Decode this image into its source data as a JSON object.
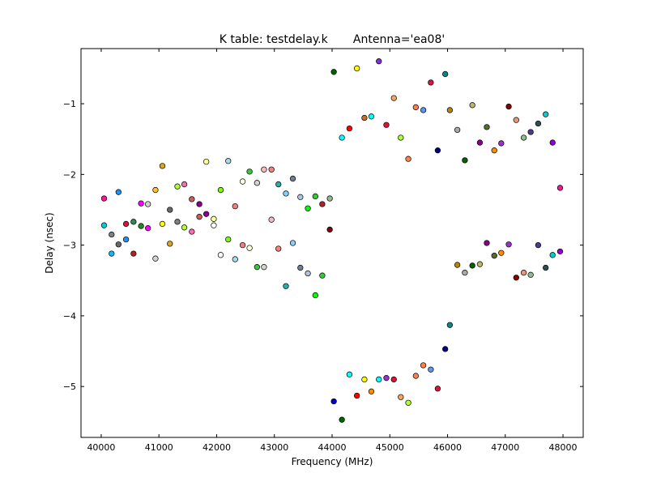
{
  "chart_data": {
    "type": "scatter",
    "title": "K table: testdelay.k       Antenna='ea08'",
    "xlabel": "Frequency (MHz)",
    "ylabel": "Delay (nsec)",
    "xlim": [
      39650,
      48350
    ],
    "ylim": [
      -5.72,
      -0.22
    ],
    "xticks": [
      40000,
      41000,
      42000,
      43000,
      44000,
      45000,
      46000,
      47000,
      48000
    ],
    "yticks": [
      -5,
      -4,
      -3,
      -2,
      -1
    ],
    "xtick_labels": [
      "40000",
      "41000",
      "42000",
      "43000",
      "44000",
      "45000",
      "46000",
      "47000",
      "48000"
    ],
    "ytick_labels": [
      "−5",
      "−4",
      "−3",
      "−2",
      "−1"
    ],
    "grid": false,
    "points": [
      {
        "x": 40050,
        "y": -2.34,
        "color": "#ff1493"
      },
      {
        "x": 40050,
        "y": -2.72,
        "color": "#00ced1"
      },
      {
        "x": 40180,
        "y": -2.85,
        "color": "#808080"
      },
      {
        "x": 40180,
        "y": -3.12,
        "color": "#00bfff"
      },
      {
        "x": 40300,
        "y": -2.25,
        "color": "#1e90ff"
      },
      {
        "x": 40300,
        "y": -2.99,
        "color": "#696969"
      },
      {
        "x": 40430,
        "y": -2.7,
        "color": "#dc143c"
      },
      {
        "x": 40430,
        "y": -2.92,
        "color": "#1e90ff"
      },
      {
        "x": 40560,
        "y": -2.67,
        "color": "#2e8b57"
      },
      {
        "x": 40560,
        "y": -3.12,
        "color": "#b22222"
      },
      {
        "x": 40690,
        "y": -2.41,
        "color": "#ff00ff"
      },
      {
        "x": 40690,
        "y": -2.73,
        "color": "#228b22"
      },
      {
        "x": 40810,
        "y": -2.42,
        "color": "#d3d3d3"
      },
      {
        "x": 40810,
        "y": -2.76,
        "color": "#ff00ff"
      },
      {
        "x": 40940,
        "y": -2.22,
        "color": "#ffc125"
      },
      {
        "x": 40940,
        "y": -3.19,
        "color": "#d3d3d3"
      },
      {
        "x": 41060,
        "y": -1.88,
        "color": "#daa520"
      },
      {
        "x": 41060,
        "y": -2.7,
        "color": "#ffff00"
      },
      {
        "x": 41190,
        "y": -2.5,
        "color": "#696969"
      },
      {
        "x": 41190,
        "y": -2.98,
        "color": "#daa520"
      },
      {
        "x": 41320,
        "y": -2.17,
        "color": "#adff2f"
      },
      {
        "x": 41320,
        "y": -2.67,
        "color": "#808080"
      },
      {
        "x": 41440,
        "y": -2.14,
        "color": "#ff69b4"
      },
      {
        "x": 41440,
        "y": -2.75,
        "color": "#adff2f"
      },
      {
        "x": 41570,
        "y": -2.35,
        "color": "#cd5c5c"
      },
      {
        "x": 41570,
        "y": -2.81,
        "color": "#ff69b4"
      },
      {
        "x": 41700,
        "y": -2.42,
        "color": "#8b008b"
      },
      {
        "x": 41700,
        "y": -2.6,
        "color": "#cd5c5c"
      },
      {
        "x": 41820,
        "y": -1.82,
        "color": "#ffff99"
      },
      {
        "x": 41820,
        "y": -2.56,
        "color": "#8b008b"
      },
      {
        "x": 41950,
        "y": -2.63,
        "color": "#ffff99"
      },
      {
        "x": 41950,
        "y": -2.72,
        "color": "#ffffff"
      },
      {
        "x": 42070,
        "y": -2.22,
        "color": "#7cfc00"
      },
      {
        "x": 42070,
        "y": -3.14,
        "color": "#ffffff"
      },
      {
        "x": 42200,
        "y": -1.81,
        "color": "#add8e6"
      },
      {
        "x": 42200,
        "y": -2.92,
        "color": "#7cfc00"
      },
      {
        "x": 42320,
        "y": -2.45,
        "color": "#f08080"
      },
      {
        "x": 42320,
        "y": -3.2,
        "color": "#add8e6"
      },
      {
        "x": 42450,
        "y": -2.1,
        "color": "#ffffe0"
      },
      {
        "x": 42450,
        "y": -3.0,
        "color": "#f08080"
      },
      {
        "x": 42570,
        "y": -1.96,
        "color": "#32cd32"
      },
      {
        "x": 42570,
        "y": -3.04,
        "color": "#ffffe0"
      },
      {
        "x": 42700,
        "y": -2.12,
        "color": "#d3d3d3"
      },
      {
        "x": 42700,
        "y": -3.31,
        "color": "#32cd32"
      },
      {
        "x": 42820,
        "y": -1.93,
        "color": "#ffb6c1"
      },
      {
        "x": 42820,
        "y": -3.31,
        "color": "#d3d3d3"
      },
      {
        "x": 42950,
        "y": -1.93,
        "color": "#fa8072"
      },
      {
        "x": 42950,
        "y": -2.64,
        "color": "#ffb6c1"
      },
      {
        "x": 43070,
        "y": -2.14,
        "color": "#20b2aa"
      },
      {
        "x": 43070,
        "y": -3.05,
        "color": "#fa8072"
      },
      {
        "x": 43200,
        "y": -2.27,
        "color": "#87cefa"
      },
      {
        "x": 43200,
        "y": -3.58,
        "color": "#20b2aa"
      },
      {
        "x": 43320,
        "y": -2.06,
        "color": "#708090"
      },
      {
        "x": 43320,
        "y": -2.97,
        "color": "#87cefa"
      },
      {
        "x": 43450,
        "y": -2.32,
        "color": "#b0c4de"
      },
      {
        "x": 43450,
        "y": -3.32,
        "color": "#708090"
      },
      {
        "x": 43580,
        "y": -2.48,
        "color": "#00ff00"
      },
      {
        "x": 43580,
        "y": -3.4,
        "color": "#b0c4de"
      },
      {
        "x": 43710,
        "y": -2.31,
        "color": "#32cd32"
      },
      {
        "x": 43710,
        "y": -3.71,
        "color": "#00ff00"
      },
      {
        "x": 43830,
        "y": -2.42,
        "color": "#b22222"
      },
      {
        "x": 43830,
        "y": -3.43,
        "color": "#32cd32"
      },
      {
        "x": 43960,
        "y": -2.34,
        "color": "#8fbc8f"
      },
      {
        "x": 43960,
        "y": -2.78,
        "color": "#8b0000"
      },
      {
        "x": 44030,
        "y": -0.55,
        "color": "#006400"
      },
      {
        "x": 44030,
        "y": -5.21,
        "color": "#0000cd"
      },
      {
        "x": 44170,
        "y": -1.48,
        "color": "#00ffff"
      },
      {
        "x": 44170,
        "y": -5.47,
        "color": "#006400"
      },
      {
        "x": 44300,
        "y": -1.35,
        "color": "#ff0000"
      },
      {
        "x": 44300,
        "y": -4.83,
        "color": "#00ffff"
      },
      {
        "x": 44430,
        "y": -0.5,
        "color": "#ffff00"
      },
      {
        "x": 44430,
        "y": -5.13,
        "color": "#ff0000"
      },
      {
        "x": 44560,
        "y": -1.2,
        "color": "#d2691e"
      },
      {
        "x": 44560,
        "y": -4.9,
        "color": "#ffff00"
      },
      {
        "x": 44680,
        "y": -1.18,
        "color": "#00ffff"
      },
      {
        "x": 44680,
        "y": -5.07,
        "color": "#ff8c00"
      },
      {
        "x": 44810,
        "y": -0.4,
        "color": "#8a2be2"
      },
      {
        "x": 44810,
        "y": -4.9,
        "color": "#00ffff"
      },
      {
        "x": 44940,
        "y": -1.3,
        "color": "#dc143c"
      },
      {
        "x": 44940,
        "y": -4.88,
        "color": "#9932cc"
      },
      {
        "x": 45070,
        "y": -0.92,
        "color": "#f4a460"
      },
      {
        "x": 45070,
        "y": -4.9,
        "color": "#dc143c"
      },
      {
        "x": 45190,
        "y": -1.48,
        "color": "#adff2f"
      },
      {
        "x": 45190,
        "y": -5.15,
        "color": "#f4a460"
      },
      {
        "x": 45320,
        "y": -1.78,
        "color": "#ff7f50"
      },
      {
        "x": 45320,
        "y": -5.23,
        "color": "#adff2f"
      },
      {
        "x": 45450,
        "y": -1.05,
        "color": "#ff7f50"
      },
      {
        "x": 45450,
        "y": -4.85,
        "color": "#ff7f50"
      },
      {
        "x": 45580,
        "y": -1.09,
        "color": "#6495ed"
      },
      {
        "x": 45580,
        "y": -4.7,
        "color": "#ff7f50"
      },
      {
        "x": 45710,
        "y": -0.7,
        "color": "#dc143c"
      },
      {
        "x": 45710,
        "y": -4.76,
        "color": "#6495ed"
      },
      {
        "x": 45830,
        "y": -1.66,
        "color": "#000080"
      },
      {
        "x": 45830,
        "y": -5.03,
        "color": "#dc143c"
      },
      {
        "x": 45960,
        "y": -0.58,
        "color": "#008b8b"
      },
      {
        "x": 45960,
        "y": -4.47,
        "color": "#000080"
      },
      {
        "x": 46040,
        "y": -1.09,
        "color": "#b8860b"
      },
      {
        "x": 46040,
        "y": -4.13,
        "color": "#008b8b"
      },
      {
        "x": 46170,
        "y": -1.37,
        "color": "#a9a9a9"
      },
      {
        "x": 46170,
        "y": -3.28,
        "color": "#b8860b"
      },
      {
        "x": 46300,
        "y": -1.8,
        "color": "#006400"
      },
      {
        "x": 46300,
        "y": -3.39,
        "color": "#a9a9a9"
      },
      {
        "x": 46430,
        "y": -1.02,
        "color": "#bdb76b"
      },
      {
        "x": 46430,
        "y": -3.29,
        "color": "#006400"
      },
      {
        "x": 46560,
        "y": -1.55,
        "color": "#8b008b"
      },
      {
        "x": 46560,
        "y": -3.27,
        "color": "#bdb76b"
      },
      {
        "x": 46680,
        "y": -1.33,
        "color": "#556b2f"
      },
      {
        "x": 46680,
        "y": -2.97,
        "color": "#8b008b"
      },
      {
        "x": 46810,
        "y": -1.66,
        "color": "#ff8c00"
      },
      {
        "x": 46810,
        "y": -3.15,
        "color": "#556b2f"
      },
      {
        "x": 46930,
        "y": -1.56,
        "color": "#9932cc"
      },
      {
        "x": 46930,
        "y": -3.11,
        "color": "#ff8c00"
      },
      {
        "x": 47060,
        "y": -1.04,
        "color": "#8b0000"
      },
      {
        "x": 47060,
        "y": -2.99,
        "color": "#9932cc"
      },
      {
        "x": 47190,
        "y": -1.23,
        "color": "#e9967a"
      },
      {
        "x": 47190,
        "y": -3.46,
        "color": "#8b0000"
      },
      {
        "x": 47320,
        "y": -1.48,
        "color": "#8fbc8f"
      },
      {
        "x": 47320,
        "y": -3.39,
        "color": "#e9967a"
      },
      {
        "x": 47440,
        "y": -1.4,
        "color": "#483d8b"
      },
      {
        "x": 47440,
        "y": -3.42,
        "color": "#8fbc8f"
      },
      {
        "x": 47570,
        "y": -1.28,
        "color": "#2f4f4f"
      },
      {
        "x": 47570,
        "y": -3.0,
        "color": "#483d8b"
      },
      {
        "x": 47700,
        "y": -1.15,
        "color": "#00ced1"
      },
      {
        "x": 47700,
        "y": -3.32,
        "color": "#2f4f4f"
      },
      {
        "x": 47820,
        "y": -1.55,
        "color": "#9400d3"
      },
      {
        "x": 47820,
        "y": -3.14,
        "color": "#00ced1"
      },
      {
        "x": 47950,
        "y": -2.19,
        "color": "#ff1493"
      },
      {
        "x": 47950,
        "y": -3.09,
        "color": "#9400d3"
      }
    ]
  }
}
